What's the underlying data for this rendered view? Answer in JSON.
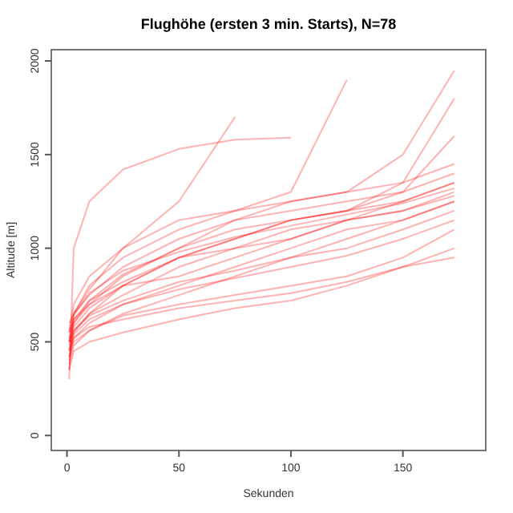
{
  "chart_data": {
    "type": "line",
    "title": "Flughöhe (ersten 3 min. Starts), N=78",
    "xlabel": "Sekunden",
    "ylabel": "Altitude [m]",
    "x": [
      1,
      3,
      10,
      25,
      50,
      75,
      100,
      125,
      150,
      173
    ],
    "xlim": [
      -7,
      187
    ],
    "ylim": [
      -80,
      2060
    ],
    "xticks": [
      0,
      50,
      100,
      150
    ],
    "yticks": [
      0,
      500,
      1000,
      1500,
      2000
    ],
    "grid": false,
    "marker": "none",
    "line_style": "solid",
    "series": [
      {
        "color": "#ff0000",
        "values": [
          300,
          1000,
          1250,
          1420,
          1530,
          1580,
          1590,
          null,
          null,
          null
        ]
      },
      {
        "color": "#ff0000",
        "values": [
          350,
          650,
          780,
          1000,
          1250,
          1700,
          null,
          null,
          null,
          null
        ]
      },
      {
        "color": "#ff0000",
        "values": [
          500,
          600,
          700,
          850,
          1000,
          1150,
          1250,
          1300,
          1350,
          1450
        ]
      },
      {
        "color": "#ff0000",
        "values": [
          450,
          580,
          680,
          800,
          950,
          1050,
          1150,
          1200,
          1250,
          1350
        ]
      },
      {
        "color": "#ff0000",
        "values": [
          400,
          550,
          650,
          750,
          900,
          1000,
          1100,
          1150,
          1200,
          1300
        ]
      },
      {
        "color": "#ff0000",
        "values": [
          550,
          620,
          720,
          820,
          950,
          1000,
          1050,
          1150,
          1200,
          1280
        ]
      },
      {
        "color": "#ff0000",
        "values": [
          420,
          520,
          600,
          700,
          800,
          900,
          1000,
          1100,
          1150,
          1250
        ]
      },
      {
        "color": "#ff0000",
        "values": [
          380,
          480,
          560,
          650,
          750,
          850,
          950,
          1050,
          1150,
          1250
        ]
      },
      {
        "color": "#ff0000",
        "values": [
          600,
          650,
          750,
          900,
          1050,
          1150,
          1200,
          1250,
          1300,
          1400
        ]
      },
      {
        "color": "#ff0000",
        "values": [
          500,
          560,
          640,
          720,
          820,
          880,
          950,
          1000,
          1100,
          1200
        ]
      },
      {
        "color": "#ff0000",
        "values": [
          350,
          450,
          500,
          550,
          620,
          680,
          720,
          800,
          900,
          1000
        ]
      },
      {
        "color": "#ff0000",
        "values": [
          450,
          520,
          580,
          620,
          680,
          720,
          760,
          820,
          900,
          950
        ]
      },
      {
        "color": "#ff0000",
        "values": [
          500,
          600,
          720,
          860,
          1000,
          1100,
          1150,
          1200,
          1350,
          1800
        ]
      },
      {
        "color": "#ff0000",
        "values": [
          550,
          650,
          800,
          950,
          1100,
          1200,
          1300,
          1900,
          null,
          null
        ]
      },
      {
        "color": "#ff0000",
        "values": [
          480,
          560,
          650,
          800,
          950,
          1050,
          1150,
          1200,
          1300,
          1600
        ]
      },
      {
        "color": "#ff0000",
        "values": [
          420,
          500,
          560,
          640,
          700,
          750,
          800,
          850,
          950,
          1100
        ]
      },
      {
        "color": "#ff0000",
        "values": [
          500,
          620,
          700,
          800,
          850,
          950,
          1050,
          1150,
          1250,
          1350
        ]
      },
      {
        "color": "#ff0000",
        "values": [
          560,
          700,
          850,
          1000,
          1150,
          1200,
          1250,
          1300,
          1500,
          1950
        ]
      },
      {
        "color": "#ff0000",
        "values": [
          460,
          540,
          620,
          700,
          780,
          840,
          900,
          960,
          1050,
          1150
        ]
      },
      {
        "color": "#ff0000",
        "values": [
          520,
          640,
          760,
          880,
          980,
          1060,
          1120,
          1180,
          1240,
          1320
        ]
      }
    ]
  }
}
